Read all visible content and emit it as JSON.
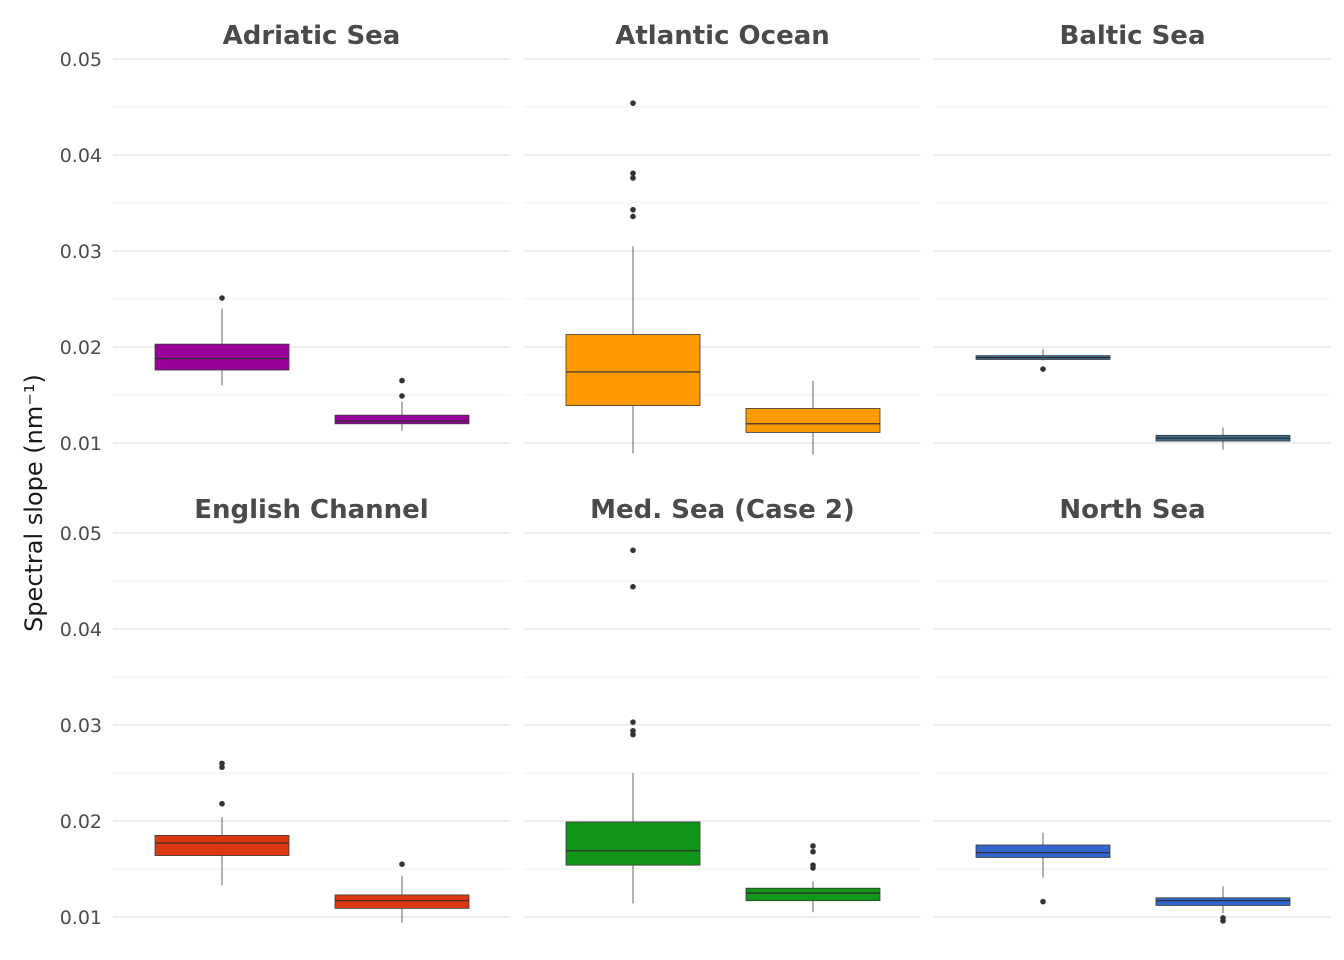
{
  "chart_data": {
    "type": "box",
    "ylabel": "Spectral slope (nm⁻¹)",
    "ylim": [
      0.0095,
      0.0505
    ],
    "yticks": [
      0.01,
      0.02,
      0.03,
      0.04,
      0.05
    ],
    "ytick_labels": [
      "0.01",
      "0.02",
      "0.03",
      "0.04",
      "0.05"
    ],
    "legend": "none",
    "grid": true,
    "facets": [
      {
        "title": "Adriatic Sea",
        "color": "#990099",
        "boxes": [
          {
            "whisker_low": 0.016,
            "q1": 0.0176,
            "median": 0.0188,
            "q3": 0.0203,
            "whisker_high": 0.024,
            "outliers": [
              0.0251
            ]
          },
          {
            "whisker_low": 0.0113,
            "q1": 0.012,
            "median": 0.0123,
            "q3": 0.0129,
            "whisker_high": 0.0143,
            "outliers": [
              0.0165,
              0.0149
            ]
          }
        ]
      },
      {
        "title": "Atlantic Ocean",
        "color": "#ff9900",
        "boxes": [
          {
            "whisker_low": 0.0089,
            "q1": 0.0139,
            "median": 0.0174,
            "q3": 0.0213,
            "whisker_high": 0.0305,
            "outliers": [
              0.0454,
              0.0381,
              0.0376,
              0.0343,
              0.0336
            ]
          },
          {
            "whisker_low": 0.0088,
            "q1": 0.0111,
            "median": 0.012,
            "q3": 0.0136,
            "whisker_high": 0.0165,
            "outliers": []
          }
        ]
      },
      {
        "title": "Baltic Sea",
        "color": "#3c6e8f",
        "boxes": [
          {
            "whisker_low": 0.0186,
            "q1": 0.0187,
            "median": 0.0189,
            "q3": 0.0191,
            "whisker_high": 0.0198,
            "outliers": [
              0.0177
            ]
          },
          {
            "whisker_low": 0.0093,
            "q1": 0.0102,
            "median": 0.0105,
            "q3": 0.0108,
            "whisker_high": 0.0116,
            "outliers": []
          }
        ]
      },
      {
        "title": "English Channel",
        "color": "#dc3912",
        "boxes": [
          {
            "whisker_low": 0.0133,
            "q1": 0.0164,
            "median": 0.0177,
            "q3": 0.0185,
            "whisker_high": 0.0204,
            "outliers": [
              0.026,
              0.0256,
              0.0218
            ]
          },
          {
            "whisker_low": 0.0094,
            "q1": 0.0109,
            "median": 0.0117,
            "q3": 0.0123,
            "whisker_high": 0.0143,
            "outliers": [
              0.0155
            ]
          }
        ]
      },
      {
        "title": "Med. Sea (Case 2)",
        "color": "#109618",
        "boxes": [
          {
            "whisker_low": 0.0114,
            "q1": 0.0154,
            "median": 0.0169,
            "q3": 0.0199,
            "whisker_high": 0.025,
            "outliers": [
              0.0482,
              0.0444,
              0.0303,
              0.0294,
              0.029
            ]
          },
          {
            "whisker_low": 0.0105,
            "q1": 0.0117,
            "median": 0.0125,
            "q3": 0.013,
            "whisker_high": 0.0137,
            "outliers": [
              0.0174,
              0.0168,
              0.0154,
              0.0151
            ]
          }
        ]
      },
      {
        "title": "North Sea",
        "color": "#3366cc",
        "boxes": [
          {
            "whisker_low": 0.0141,
            "q1": 0.0162,
            "median": 0.0167,
            "q3": 0.0175,
            "whisker_high": 0.0188,
            "outliers": [
              0.0116
            ]
          },
          {
            "whisker_low": 0.0104,
            "q1": 0.0112,
            "median": 0.0117,
            "q3": 0.012,
            "whisker_high": 0.0132,
            "outliers": [
              0.0099,
              0.0096
            ]
          }
        ]
      }
    ]
  }
}
